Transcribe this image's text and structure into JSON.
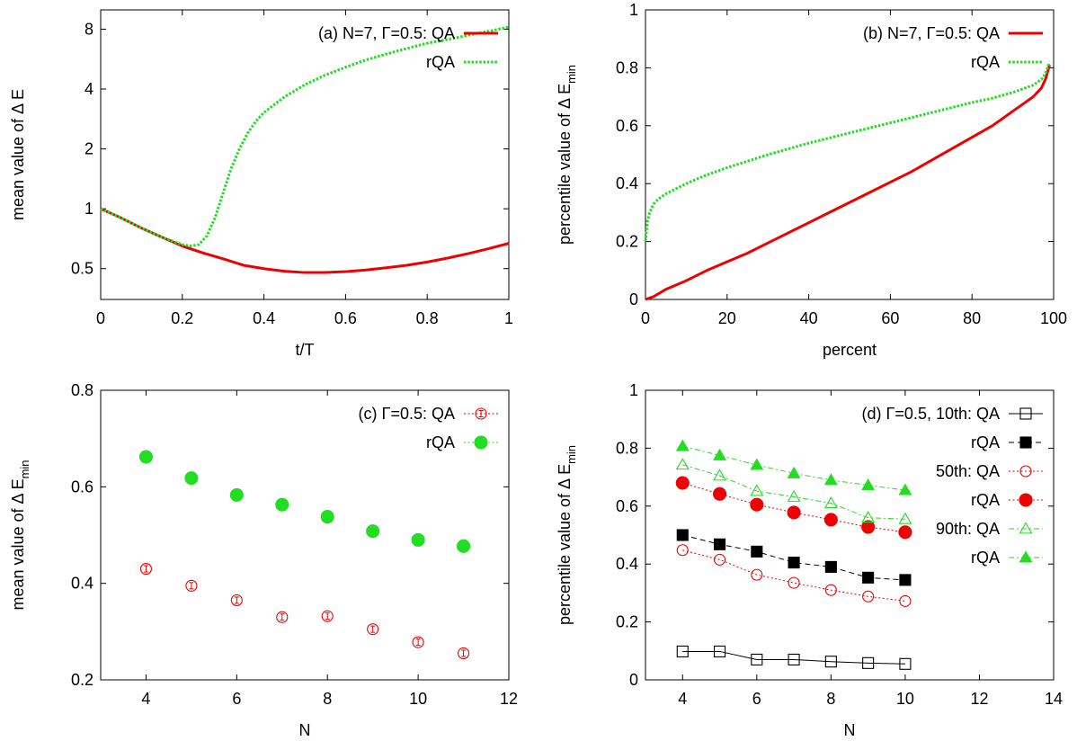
{
  "chart_data": [
    {
      "panel": "a",
      "type": "line",
      "xlabel": "t/T",
      "ylabel": "mean value of Δ E",
      "ylog": true,
      "xlim": [
        0,
        1
      ],
      "ylim": [
        0.35,
        10
      ],
      "xticks": [
        "0",
        "0.2",
        "0.4",
        "0.6",
        "0.8",
        "1"
      ],
      "yticks": [
        "0.5",
        "1",
        "2",
        "4",
        "8"
      ],
      "legend_position": "top-right",
      "legend_lines": [
        "(a) N=7, Γ=0.5: QA",
        "rQA"
      ],
      "series": [
        {
          "name": "(a) N=7, Γ=0.5: QA",
          "color": "#ee0000",
          "style": "solid",
          "x": [
            0,
            0.05,
            0.1,
            0.15,
            0.2,
            0.25,
            0.3,
            0.35,
            0.4,
            0.45,
            0.5,
            0.55,
            0.6,
            0.65,
            0.7,
            0.75,
            0.8,
            0.85,
            0.9,
            0.95,
            1.0
          ],
          "y": [
            1.0,
            0.9,
            0.8,
            0.72,
            0.65,
            0.6,
            0.56,
            0.52,
            0.5,
            0.485,
            0.478,
            0.478,
            0.483,
            0.492,
            0.505,
            0.52,
            0.54,
            0.565,
            0.595,
            0.63,
            0.67
          ]
        },
        {
          "name": "rQA",
          "color": "#22dd22",
          "style": "dotted",
          "x": [
            0,
            0.05,
            0.1,
            0.15,
            0.2,
            0.22,
            0.24,
            0.26,
            0.28,
            0.3,
            0.32,
            0.34,
            0.36,
            0.38,
            0.4,
            0.45,
            0.5,
            0.55,
            0.6,
            0.65,
            0.7,
            0.75,
            0.8,
            0.85,
            0.9,
            0.95,
            1.0
          ],
          "y": [
            1.0,
            0.9,
            0.8,
            0.72,
            0.66,
            0.65,
            0.66,
            0.73,
            0.9,
            1.2,
            1.6,
            2.0,
            2.4,
            2.75,
            3.05,
            3.65,
            4.2,
            4.7,
            5.15,
            5.6,
            6.0,
            6.4,
            6.8,
            7.1,
            7.45,
            7.8,
            8.2
          ]
        }
      ]
    },
    {
      "panel": "b",
      "type": "line",
      "xlabel": "percent",
      "ylabel": "percentile value of Δ E",
      "ylabel_sub": "min",
      "xlim": [
        0,
        100
      ],
      "ylim": [
        0,
        1
      ],
      "xticks": [
        "0",
        "20",
        "40",
        "60",
        "80",
        "100"
      ],
      "yticks": [
        "0",
        "0.2",
        "0.4",
        "0.6",
        "0.8",
        "1"
      ],
      "legend_position": "top-right",
      "legend_lines": [
        "(b) N=7, Γ=0.5: QA",
        "rQA"
      ],
      "series": [
        {
          "name": "(b) N=7, Γ=0.5: QA",
          "color": "#ee0000",
          "style": "solid",
          "x": [
            0,
            2,
            5,
            10,
            15,
            20,
            25,
            30,
            35,
            40,
            45,
            50,
            55,
            60,
            65,
            70,
            75,
            80,
            85,
            90,
            93,
            95,
            97,
            98,
            99
          ],
          "y": [
            0,
            0.01,
            0.035,
            0.065,
            0.1,
            0.13,
            0.16,
            0.195,
            0.23,
            0.265,
            0.3,
            0.335,
            0.37,
            0.405,
            0.44,
            0.48,
            0.52,
            0.56,
            0.6,
            0.65,
            0.68,
            0.7,
            0.73,
            0.76,
            0.81
          ]
        },
        {
          "name": "rQA",
          "color": "#22dd22",
          "style": "dotted",
          "x": [
            0,
            0.5,
            1,
            2,
            3,
            5,
            10,
            15,
            20,
            30,
            40,
            50,
            60,
            70,
            80,
            85,
            90,
            93,
            95,
            97,
            98,
            99
          ],
          "y": [
            0.2,
            0.27,
            0.3,
            0.33,
            0.345,
            0.365,
            0.4,
            0.43,
            0.455,
            0.5,
            0.54,
            0.575,
            0.61,
            0.645,
            0.68,
            0.695,
            0.715,
            0.73,
            0.74,
            0.76,
            0.78,
            0.82
          ]
        }
      ]
    },
    {
      "panel": "c",
      "type": "scatter",
      "xlabel": "N",
      "ylabel": "mean value of Δ E",
      "ylabel_sub": "min",
      "xlim": [
        3,
        12
      ],
      "ylim": [
        0.2,
        0.8
      ],
      "xticks": [
        "4",
        "6",
        "8",
        "10",
        "12"
      ],
      "yticks": [
        "0.2",
        "0.4",
        "0.6",
        "0.8"
      ],
      "legend_position": "top-right",
      "legend_lines": [
        "(c) Γ=0.5: QA",
        "rQA"
      ],
      "series": [
        {
          "name": "(c) Γ=0.5: QA",
          "color": "#ee0000",
          "marker": "open-circle-errorbar",
          "x": [
            4,
            5,
            6,
            7,
            8,
            9,
            10,
            11
          ],
          "y": [
            0.43,
            0.395,
            0.365,
            0.33,
            0.332,
            0.305,
            0.278,
            0.255
          ]
        },
        {
          "name": "rQA",
          "color": "#22dd22",
          "marker": "filled-circle",
          "x": [
            4,
            5,
            6,
            7,
            8,
            9,
            10,
            11
          ],
          "y": [
            0.662,
            0.618,
            0.583,
            0.563,
            0.538,
            0.508,
            0.49,
            0.477
          ]
        }
      ]
    },
    {
      "panel": "d",
      "type": "line",
      "xlabel": "N",
      "ylabel": "percentile value of Δ E",
      "ylabel_sub": "min",
      "xlim": [
        3,
        14
      ],
      "ylim": [
        0,
        1
      ],
      "xticks": [
        "4",
        "6",
        "8",
        "10",
        "12",
        "14"
      ],
      "yticks": [
        "0",
        "0.2",
        "0.4",
        "0.6",
        "0.8",
        "1"
      ],
      "legend_position": "top-right",
      "legend_lines": [
        "(d) Γ=0.5, 10th: QA",
        "rQA",
        "50th: QA",
        "rQA",
        "90th: QA",
        "rQA"
      ],
      "series": [
        {
          "name": "(d) Γ=0.5, 10th: QA",
          "color": "#000000",
          "marker": "open-square",
          "style": "solid",
          "x": [
            4,
            5,
            6,
            7,
            8,
            9,
            10
          ],
          "y": [
            0.098,
            0.098,
            0.07,
            0.07,
            0.063,
            0.058,
            0.055
          ]
        },
        {
          "name": "rQA",
          "color": "#000000",
          "marker": "filled-square",
          "style": "dashed",
          "x": [
            4,
            5,
            6,
            7,
            8,
            9,
            10
          ],
          "y": [
            0.5,
            0.468,
            0.443,
            0.405,
            0.39,
            0.353,
            0.345
          ]
        },
        {
          "name": "50th: QA",
          "color": "#ee0000",
          "marker": "open-circle",
          "style": "dotted",
          "x": [
            4,
            5,
            6,
            7,
            8,
            9,
            10
          ],
          "y": [
            0.448,
            0.415,
            0.363,
            0.335,
            0.31,
            0.288,
            0.272
          ]
        },
        {
          "name": "rQA",
          "color": "#ee0000",
          "marker": "filled-circle",
          "style": "dotted",
          "x": [
            4,
            5,
            6,
            7,
            8,
            9,
            10
          ],
          "y": [
            0.68,
            0.642,
            0.605,
            0.578,
            0.553,
            0.528,
            0.51
          ]
        },
        {
          "name": "90th: QA",
          "color": "#22dd22",
          "marker": "open-triangle",
          "style": "dashdot",
          "x": [
            4,
            5,
            6,
            7,
            8,
            9,
            10
          ],
          "y": [
            0.743,
            0.705,
            0.652,
            0.632,
            0.61,
            0.56,
            0.555
          ]
        },
        {
          "name": "rQA",
          "color": "#22dd22",
          "marker": "filled-triangle",
          "style": "dashdot",
          "x": [
            4,
            5,
            6,
            7,
            8,
            9,
            10
          ],
          "y": [
            0.807,
            0.775,
            0.742,
            0.713,
            0.69,
            0.672,
            0.655
          ]
        }
      ]
    }
  ]
}
